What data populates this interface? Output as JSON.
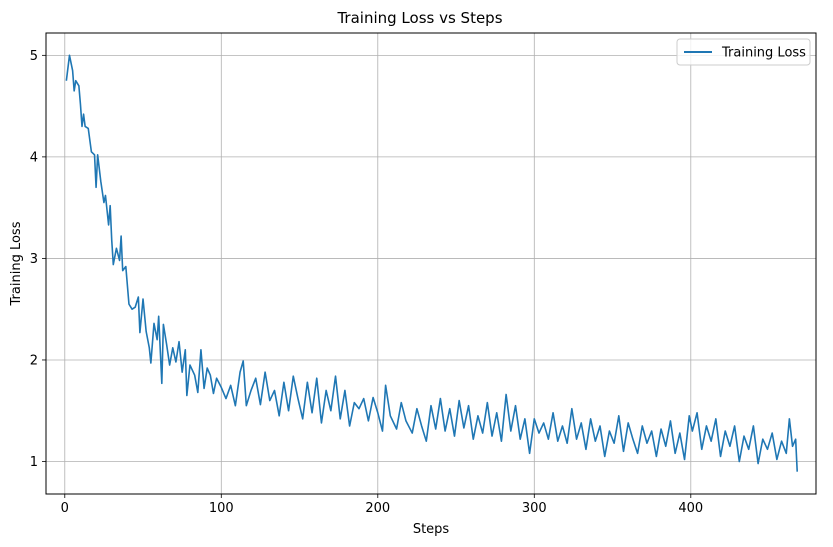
{
  "chart_data": {
    "type": "line",
    "title": "Training Loss vs Steps",
    "xlabel": "Steps",
    "ylabel": "Training Loss",
    "xlim": [
      -12,
      480
    ],
    "ylim": [
      0.68,
      5.22
    ],
    "xticks": [
      0,
      100,
      200,
      300,
      400
    ],
    "yticks": [
      1,
      2,
      3,
      4,
      5
    ],
    "grid": true,
    "legend_position": "top-right",
    "series": [
      {
        "name": "Training Loss",
        "color": "#1f77b4",
        "points": [
          [
            1,
            4.75
          ],
          [
            3,
            5.0
          ],
          [
            5,
            4.85
          ],
          [
            6,
            4.65
          ],
          [
            7,
            4.75
          ],
          [
            9,
            4.7
          ],
          [
            10,
            4.52
          ],
          [
            11,
            4.3
          ],
          [
            12,
            4.42
          ],
          [
            13,
            4.3
          ],
          [
            15,
            4.28
          ],
          [
            17,
            4.05
          ],
          [
            19,
            4.02
          ],
          [
            20,
            3.7
          ],
          [
            21,
            4.02
          ],
          [
            23,
            3.76
          ],
          [
            25,
            3.55
          ],
          [
            26,
            3.62
          ],
          [
            28,
            3.33
          ],
          [
            29,
            3.52
          ],
          [
            30,
            3.18
          ],
          [
            31,
            2.94
          ],
          [
            33,
            3.1
          ],
          [
            35,
            2.98
          ],
          [
            36,
            3.22
          ],
          [
            37,
            2.88
          ],
          [
            39,
            2.92
          ],
          [
            41,
            2.55
          ],
          [
            43,
            2.5
          ],
          [
            45,
            2.52
          ],
          [
            47,
            2.62
          ],
          [
            48,
            2.27
          ],
          [
            50,
            2.6
          ],
          [
            52,
            2.28
          ],
          [
            54,
            2.12
          ],
          [
            55,
            1.97
          ],
          [
            57,
            2.36
          ],
          [
            59,
            2.2
          ],
          [
            60,
            2.43
          ],
          [
            62,
            1.77
          ],
          [
            63,
            2.35
          ],
          [
            65,
            2.16
          ],
          [
            67,
            1.95
          ],
          [
            69,
            2.12
          ],
          [
            71,
            1.98
          ],
          [
            73,
            2.18
          ],
          [
            75,
            1.88
          ],
          [
            77,
            2.1
          ],
          [
            78,
            1.65
          ],
          [
            80,
            1.95
          ],
          [
            83,
            1.85
          ],
          [
            85,
            1.68
          ],
          [
            87,
            2.1
          ],
          [
            89,
            1.72
          ],
          [
            91,
            1.92
          ],
          [
            93,
            1.85
          ],
          [
            95,
            1.67
          ],
          [
            97,
            1.82
          ],
          [
            100,
            1.73
          ],
          [
            103,
            1.62
          ],
          [
            106,
            1.75
          ],
          [
            109,
            1.55
          ],
          [
            112,
            1.88
          ],
          [
            114,
            1.99
          ],
          [
            116,
            1.55
          ],
          [
            119,
            1.7
          ],
          [
            122,
            1.82
          ],
          [
            125,
            1.56
          ],
          [
            128,
            1.88
          ],
          [
            131,
            1.6
          ],
          [
            134,
            1.7
          ],
          [
            137,
            1.45
          ],
          [
            140,
            1.78
          ],
          [
            143,
            1.5
          ],
          [
            146,
            1.84
          ],
          [
            149,
            1.62
          ],
          [
            152,
            1.42
          ],
          [
            155,
            1.78
          ],
          [
            158,
            1.48
          ],
          [
            161,
            1.82
          ],
          [
            164,
            1.38
          ],
          [
            167,
            1.7
          ],
          [
            170,
            1.5
          ],
          [
            173,
            1.84
          ],
          [
            176,
            1.42
          ],
          [
            179,
            1.7
          ],
          [
            182,
            1.35
          ],
          [
            185,
            1.58
          ],
          [
            188,
            1.52
          ],
          [
            191,
            1.62
          ],
          [
            194,
            1.4
          ],
          [
            197,
            1.63
          ],
          [
            200,
            1.48
          ],
          [
            203,
            1.3
          ],
          [
            205,
            1.75
          ],
          [
            208,
            1.45
          ],
          [
            212,
            1.32
          ],
          [
            215,
            1.58
          ],
          [
            218,
            1.4
          ],
          [
            222,
            1.28
          ],
          [
            225,
            1.52
          ],
          [
            228,
            1.35
          ],
          [
            231,
            1.2
          ],
          [
            234,
            1.55
          ],
          [
            237,
            1.32
          ],
          [
            240,
            1.62
          ],
          [
            243,
            1.3
          ],
          [
            246,
            1.52
          ],
          [
            249,
            1.25
          ],
          [
            252,
            1.6
          ],
          [
            255,
            1.33
          ],
          [
            258,
            1.55
          ],
          [
            261,
            1.22
          ],
          [
            264,
            1.45
          ],
          [
            267,
            1.28
          ],
          [
            270,
            1.58
          ],
          [
            273,
            1.25
          ],
          [
            276,
            1.48
          ],
          [
            279,
            1.2
          ],
          [
            282,
            1.66
          ],
          [
            285,
            1.3
          ],
          [
            288,
            1.55
          ],
          [
            291,
            1.22
          ],
          [
            294,
            1.42
          ],
          [
            297,
            1.08
          ],
          [
            300,
            1.42
          ],
          [
            303,
            1.28
          ],
          [
            306,
            1.38
          ],
          [
            309,
            1.22
          ],
          [
            312,
            1.48
          ],
          [
            315,
            1.2
          ],
          [
            318,
            1.35
          ],
          [
            321,
            1.18
          ],
          [
            324,
            1.52
          ],
          [
            327,
            1.22
          ],
          [
            330,
            1.38
          ],
          [
            333,
            1.12
          ],
          [
            336,
            1.42
          ],
          [
            339,
            1.2
          ],
          [
            342,
            1.35
          ],
          [
            345,
            1.05
          ],
          [
            348,
            1.3
          ],
          [
            351,
            1.18
          ],
          [
            354,
            1.45
          ],
          [
            357,
            1.1
          ],
          [
            360,
            1.38
          ],
          [
            363,
            1.22
          ],
          [
            366,
            1.08
          ],
          [
            369,
            1.35
          ],
          [
            372,
            1.18
          ],
          [
            375,
            1.3
          ],
          [
            378,
            1.05
          ],
          [
            381,
            1.32
          ],
          [
            384,
            1.15
          ],
          [
            387,
            1.4
          ],
          [
            390,
            1.08
          ],
          [
            393,
            1.28
          ],
          [
            396,
            1.02
          ],
          [
            399,
            1.45
          ],
          [
            401,
            1.3
          ],
          [
            404,
            1.48
          ],
          [
            407,
            1.12
          ],
          [
            410,
            1.35
          ],
          [
            413,
            1.2
          ],
          [
            416,
            1.42
          ],
          [
            419,
            1.05
          ],
          [
            422,
            1.3
          ],
          [
            425,
            1.15
          ],
          [
            428,
            1.35
          ],
          [
            431,
            1.0
          ],
          [
            434,
            1.25
          ],
          [
            437,
            1.12
          ],
          [
            440,
            1.35
          ],
          [
            443,
            0.98
          ],
          [
            446,
            1.22
          ],
          [
            449,
            1.12
          ],
          [
            452,
            1.28
          ],
          [
            455,
            1.02
          ],
          [
            458,
            1.2
          ],
          [
            461,
            1.08
          ],
          [
            463,
            1.42
          ],
          [
            465,
            1.15
          ],
          [
            467,
            1.22
          ],
          [
            468,
            0.9
          ]
        ]
      }
    ]
  }
}
